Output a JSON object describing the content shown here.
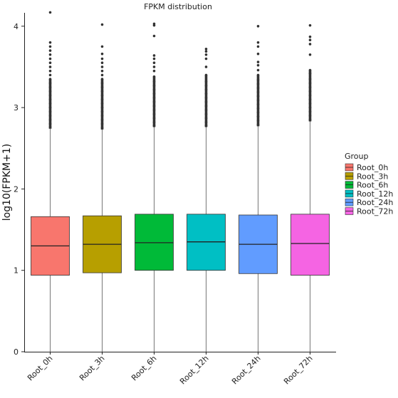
{
  "chart_data": {
    "type": "boxplot",
    "title": "FPKM distribution",
    "xlabel": "",
    "ylabel": "log10(FPKM+1)",
    "ylim": [
      0,
      4.15
    ],
    "yticks": [
      "0",
      "1",
      "2",
      "3",
      "4"
    ],
    "grid": false,
    "legend": {
      "title": "Group",
      "placement": "right"
    },
    "categories": [
      "Root_0h",
      "Root_3h",
      "Root_6h",
      "Root_12h",
      "Root_24h",
      "Root_72h"
    ],
    "series": [
      {
        "name": "Root_0h",
        "color": "#F8766D",
        "whisker_low": 0,
        "q1": 0.94,
        "median": 1.3,
        "q3": 1.66,
        "whisker_high": 2.74,
        "outliers": [
          2.76,
          2.8,
          2.85,
          2.9,
          2.95,
          3.0,
          3.05,
          3.1,
          3.15,
          3.2,
          3.25,
          3.3,
          3.35,
          3.4,
          3.45,
          3.5,
          3.55,
          3.6,
          3.65,
          3.7,
          3.75,
          3.8,
          4.17
        ]
      },
      {
        "name": "Root_3h",
        "color": "#B79F00",
        "whisker_low": 0,
        "q1": 0.97,
        "median": 1.32,
        "q3": 1.67,
        "whisker_high": 2.73,
        "outliers": [
          2.75,
          2.8,
          2.85,
          2.9,
          2.95,
          3.0,
          3.05,
          3.1,
          3.15,
          3.2,
          3.25,
          3.3,
          3.35,
          3.4,
          3.45,
          3.5,
          3.55,
          3.6,
          3.66,
          3.75,
          4.02
        ]
      },
      {
        "name": "Root_6h",
        "color": "#00BA38",
        "whisker_low": 0,
        "q1": 1.0,
        "median": 1.34,
        "q3": 1.69,
        "whisker_high": 2.76,
        "outliers": [
          2.78,
          2.82,
          2.87,
          2.92,
          2.97,
          3.02,
          3.07,
          3.12,
          3.17,
          3.22,
          3.27,
          3.32,
          3.38,
          3.45,
          3.5,
          3.55,
          3.6,
          3.64,
          3.88,
          4.01,
          4.03
        ]
      },
      {
        "name": "Root_12h",
        "color": "#00BFC4",
        "whisker_low": 0,
        "q1": 1.0,
        "median": 1.35,
        "q3": 1.69,
        "whisker_high": 2.76,
        "outliers": [
          2.78,
          2.82,
          2.87,
          2.92,
          2.97,
          3.02,
          3.07,
          3.12,
          3.17,
          3.22,
          3.27,
          3.32,
          3.4,
          3.5,
          3.6,
          3.65,
          3.69,
          3.72
        ]
      },
      {
        "name": "Root_24h",
        "color": "#619CFF",
        "whisker_low": 0,
        "q1": 0.96,
        "median": 1.32,
        "q3": 1.68,
        "whisker_high": 2.77,
        "outliers": [
          2.79,
          2.84,
          2.89,
          2.94,
          2.99,
          3.04,
          3.09,
          3.14,
          3.19,
          3.24,
          3.29,
          3.34,
          3.4,
          3.46,
          3.52,
          3.56,
          3.66,
          3.75,
          3.8,
          4.0
        ]
      },
      {
        "name": "Root_72h",
        "color": "#F564E3",
        "whisker_low": 0,
        "q1": 0.94,
        "median": 1.33,
        "q3": 1.69,
        "whisker_high": 2.83,
        "outliers": [
          2.85,
          2.9,
          2.95,
          3.0,
          3.05,
          3.1,
          3.15,
          3.2,
          3.25,
          3.3,
          3.35,
          3.42,
          3.46,
          3.65,
          3.78,
          3.83,
          3.87,
          4.01
        ]
      }
    ]
  }
}
